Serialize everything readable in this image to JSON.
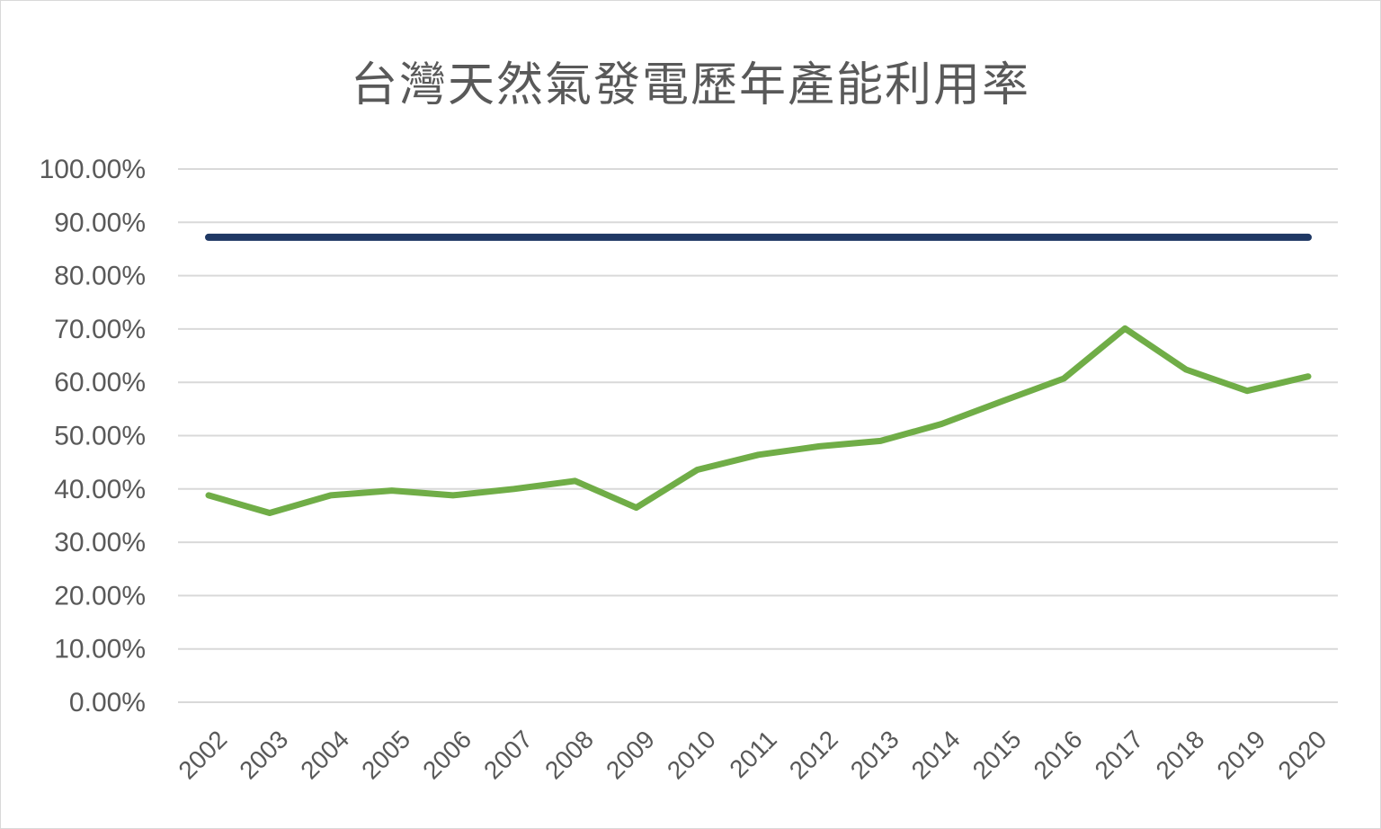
{
  "chart_data": {
    "type": "line",
    "title": "台灣天然氣發電歷年產能利用率",
    "x": [
      "2002",
      "2003",
      "2004",
      "2005",
      "2006",
      "2007",
      "2008",
      "2009",
      "2010",
      "2011",
      "2012",
      "2013",
      "2014",
      "2015",
      "2016",
      "2017",
      "2018",
      "2019",
      "2020"
    ],
    "yticks": [
      "0.00%",
      "10.00%",
      "20.00%",
      "30.00%",
      "40.00%",
      "50.00%",
      "60.00%",
      "70.00%",
      "80.00%",
      "90.00%",
      "100.00%"
    ],
    "ylim": [
      0,
      100
    ],
    "grid": true,
    "series": [
      {
        "color": "#1f3864",
        "values": [
          87.2,
          87.2,
          87.2,
          87.2,
          87.2,
          87.2,
          87.2,
          87.2,
          87.2,
          87.2,
          87.2,
          87.2,
          87.2,
          87.2,
          87.2,
          87.2,
          87.2,
          87.2,
          87.2
        ]
      },
      {
        "color": "#70ad47",
        "values": [
          38.8,
          35.5,
          38.8,
          39.7,
          38.8,
          40.0,
          41.5,
          36.5,
          43.6,
          46.4,
          48.0,
          49.0,
          52.2,
          56.5,
          60.7,
          70.1,
          62.4,
          58.4,
          61.1
        ]
      }
    ]
  }
}
